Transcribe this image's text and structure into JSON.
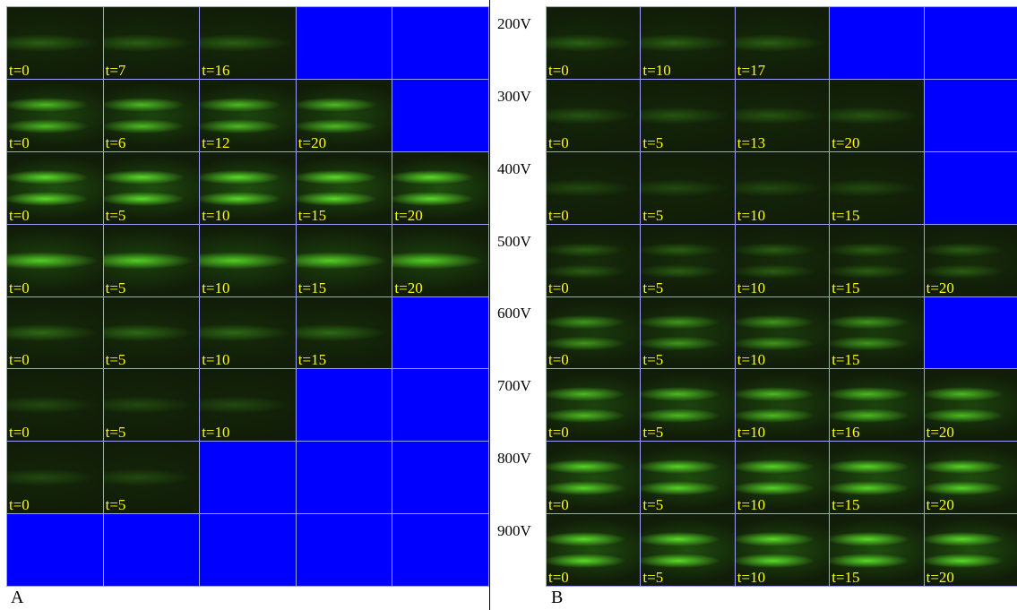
{
  "panel_a": {
    "label": "A",
    "rows": [
      [
        "t=0",
        "t=7",
        "t=16"
      ],
      [
        "t=0",
        "t=6",
        "t=12",
        "t=20"
      ],
      [
        "t=0",
        "t=5",
        "t=10",
        "t=15",
        "t=20"
      ],
      [
        "t=0",
        "t=5",
        "t=10",
        "t=15",
        "t=20"
      ],
      [
        "t=0",
        "t=5",
        "t=10",
        "t=15"
      ],
      [
        "t=0",
        "t=5",
        "t=10"
      ],
      [
        "t=0",
        "t=5"
      ],
      []
    ]
  },
  "panel_b": {
    "label": "B",
    "rows": [
      {
        "voltage": "200V",
        "cells": [
          "t=0",
          "t=10",
          "t=17"
        ]
      },
      {
        "voltage": "300V",
        "cells": [
          "t=0",
          "t=5",
          "t=13",
          "t=20"
        ]
      },
      {
        "voltage": "400V",
        "cells": [
          "t=0",
          "t=5",
          "t=10",
          "t=15"
        ]
      },
      {
        "voltage": "500V",
        "cells": [
          "t=0",
          "t=5",
          "t=10",
          "t=15",
          "t=20"
        ]
      },
      {
        "voltage": "600V",
        "cells": [
          "t=0",
          "t=5",
          "t=10",
          "t=15"
        ]
      },
      {
        "voltage": "700V",
        "cells": [
          "t=0",
          "t=5",
          "t=10",
          "t=16",
          "t=20"
        ]
      },
      {
        "voltage": "800V",
        "cells": [
          "t=0",
          "t=5",
          "t=10",
          "t=15",
          "t=20"
        ]
      },
      {
        "voltage": "900V",
        "cells": [
          "t=0",
          "t=5",
          "t=10",
          "t=15",
          "t=20"
        ]
      }
    ]
  }
}
